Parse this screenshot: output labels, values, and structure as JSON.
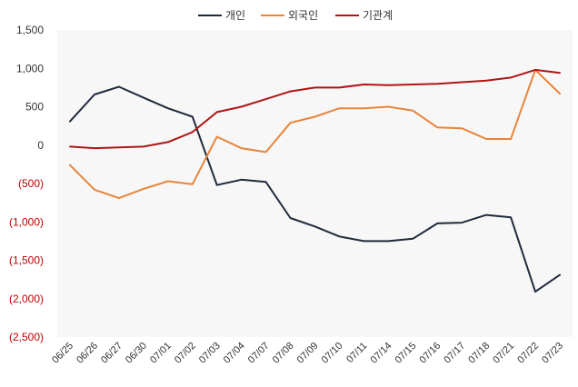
{
  "chart_data": {
    "type": "line",
    "title": "",
    "xlabel": "",
    "ylabel": "",
    "ylim": [
      -2500,
      1500
    ],
    "y_ticks": [
      {
        "value": 1500,
        "label": "1,500",
        "color": "#333333"
      },
      {
        "value": 1000,
        "label": "1,000",
        "color": "#333333"
      },
      {
        "value": 500,
        "label": "500",
        "color": "#333333"
      },
      {
        "value": 0,
        "label": "0",
        "color": "#333333"
      },
      {
        "value": -500,
        "label": "(500)",
        "color": "#c00000"
      },
      {
        "value": -1000,
        "label": "(1,000)",
        "color": "#c00000"
      },
      {
        "value": -1500,
        "label": "(1,500)",
        "color": "#c00000"
      },
      {
        "value": -2000,
        "label": "(2,000)",
        "color": "#c00000"
      },
      {
        "value": -2500,
        "label": "(2,500)",
        "color": "#c00000"
      }
    ],
    "categories": [
      "06/25",
      "06/26",
      "06/27",
      "06/30",
      "07/01",
      "07/02",
      "07/03",
      "07/04",
      "07/07",
      "07/08",
      "07/09",
      "07/10",
      "07/11",
      "07/14",
      "07/15",
      "07/16",
      "07/17",
      "07/18",
      "07/21",
      "07/22",
      "07/23"
    ],
    "legend_position": "top-center",
    "series": [
      {
        "name": "개인",
        "color": "#1f2a3c",
        "values": [
          310,
          660,
          760,
          620,
          480,
          370,
          -520,
          -450,
          -480,
          -950,
          -1060,
          -1190,
          -1250,
          -1250,
          -1220,
          -1020,
          -1010,
          -910,
          -940,
          -1910,
          -1690
        ]
      },
      {
        "name": "외국인",
        "color": "#e8843a",
        "values": [
          -260,
          -580,
          -690,
          -570,
          -470,
          -510,
          110,
          -40,
          -90,
          290,
          370,
          480,
          480,
          500,
          450,
          230,
          220,
          80,
          80,
          980,
          670
        ]
      },
      {
        "name": "기관계",
        "color": "#b01515",
        "values": [
          -20,
          -40,
          -30,
          -20,
          40,
          170,
          430,
          500,
          600,
          700,
          750,
          750,
          790,
          780,
          790,
          800,
          820,
          840,
          880,
          980,
          940
        ]
      }
    ]
  }
}
